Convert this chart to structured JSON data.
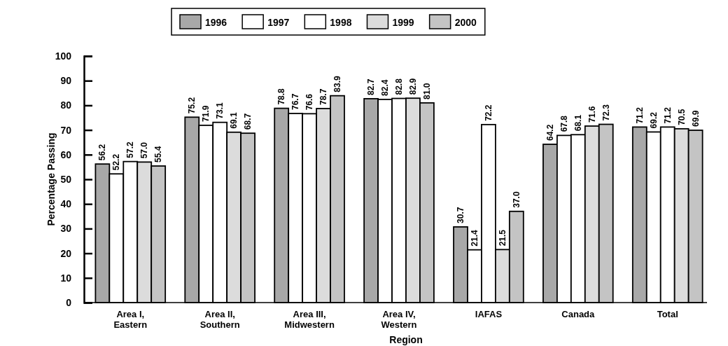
{
  "chart_data": {
    "type": "bar",
    "xlabel": "Region",
    "ylabel": "Percentage Passing",
    "categories": [
      "Area I, Eastern",
      "Area II, Southern",
      "Area III, Midwestern",
      "Area IV, Western",
      "IAFAS",
      "Canada",
      "Total"
    ],
    "series": [
      {
        "name": "1996",
        "color": "#a8a8a8",
        "values": [
          56.2,
          75.2,
          78.8,
          82.7,
          30.7,
          64.2,
          71.2
        ],
        "value_labels": [
          "56.2",
          "75.2",
          "78.8",
          "82.7",
          "30.7",
          "64.2",
          "71.2"
        ]
      },
      {
        "name": "1997",
        "color": "#ffffff",
        "values": [
          52.2,
          71.9,
          76.7,
          82.4,
          21.4,
          67.8,
          69.2
        ],
        "value_labels": [
          "52.2",
          "71.9",
          "76.7",
          "82.4",
          "21.4",
          "67.8",
          "69.2"
        ]
      },
      {
        "name": "1998",
        "color": "#ffffff",
        "values": [
          57.2,
          73.1,
          76.6,
          82.8,
          72.2,
          68.1,
          71.2
        ],
        "value_labels": [
          "57.2",
          "73.1",
          "76.6",
          "82.8",
          "72.2",
          "68.1",
          "71.2"
        ]
      },
      {
        "name": "1999",
        "color": "#dcdcdc",
        "values": [
          57.0,
          69.1,
          78.7,
          82.9,
          21.5,
          71.6,
          70.5
        ],
        "value_labels": [
          "57.0",
          "69.1",
          "78.7",
          "82.9",
          "21.5",
          "71.6",
          "70.5"
        ]
      },
      {
        "name": "2000",
        "color": "#c4c4c4",
        "values": [
          55.4,
          68.7,
          83.9,
          81.0,
          37.0,
          72.3,
          69.9
        ],
        "value_labels": [
          "55.4",
          "68.7",
          "83.9",
          "81.0",
          "37.0",
          "72.3",
          "69.9"
        ]
      }
    ],
    "ylim": [
      0,
      100
    ],
    "yticks": [
      0,
      10,
      20,
      30,
      40,
      50,
      60,
      70,
      80,
      90,
      100
    ],
    "grid": false,
    "legend": "top"
  }
}
